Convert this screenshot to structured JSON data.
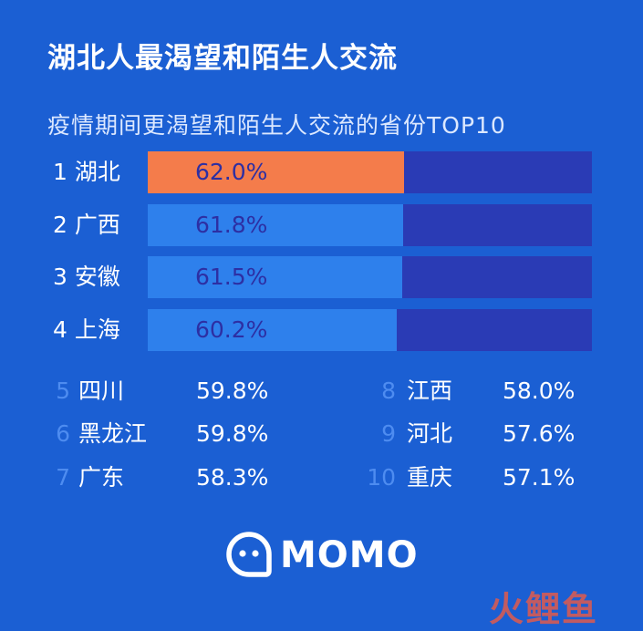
{
  "title": "湖北人最渴望和陌生人交流",
  "subtitle": "疫情期间更渴望和陌生人交流的省份TOP10",
  "colors": {
    "background": "#1b5fd3",
    "highlight_bar": "#f47c4b",
    "bar": "#2e80ec",
    "track": "#2a3bb5",
    "rank_text": "#4e8cf0"
  },
  "chart_data": {
    "type": "bar",
    "orientation": "horizontal",
    "title": "疫情期间更渴望和陌生人交流的省份TOP10",
    "unit": "%",
    "top_bars": [
      {
        "rank": "1",
        "name": "湖北",
        "value": 62.0,
        "label": "62.0%"
      },
      {
        "rank": "2",
        "name": "广西",
        "value": 61.8,
        "label": "61.8%"
      },
      {
        "rank": "3",
        "name": "安徽",
        "value": 61.5,
        "label": "61.5%"
      },
      {
        "rank": "4",
        "name": "上海",
        "value": 60.2,
        "label": "60.2%"
      }
    ],
    "list_left": [
      {
        "rank": "5",
        "name": "四川",
        "value": 59.8,
        "label": "59.8%"
      },
      {
        "rank": "6",
        "name": "黑龙江",
        "value": 59.8,
        "label": "59.8%"
      },
      {
        "rank": "7",
        "name": "广东",
        "value": 58.3,
        "label": "58.3%"
      }
    ],
    "list_right": [
      {
        "rank": "8",
        "name": "江西",
        "value": 58.0,
        "label": "58.0%"
      },
      {
        "rank": "9",
        "name": "河北",
        "value": 57.6,
        "label": "57.6%"
      },
      {
        "rank": "10",
        "name": "重庆",
        "value": 57.1,
        "label": "57.1%"
      }
    ],
    "xlim": [
      0,
      100
    ]
  },
  "logo": {
    "text": "MOMO",
    "icon": "momo-chat-bubble-icon"
  },
  "watermark": {
    "text": "火鲤鱼"
  }
}
